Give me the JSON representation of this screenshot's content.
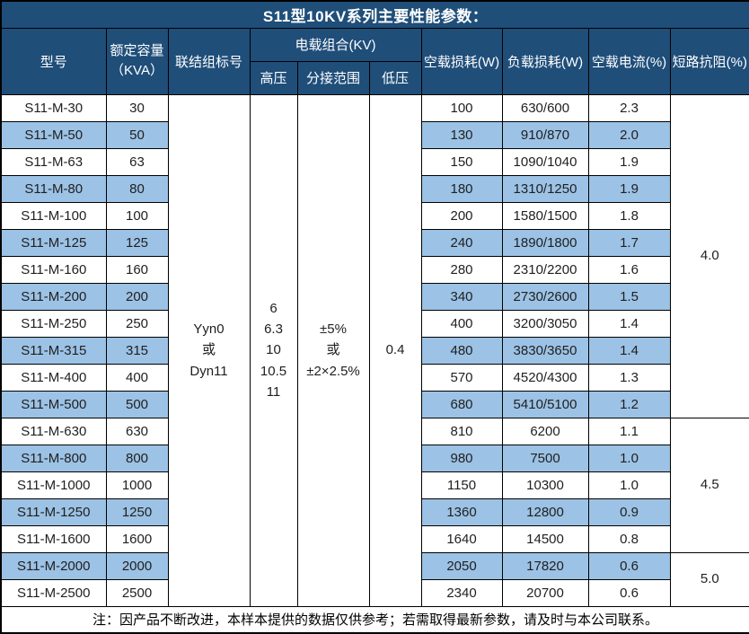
{
  "title": "S11型10KV系列主要性能参数：",
  "colors": {
    "header_bg": "#1F4E79",
    "stripe_bg": "#9CC2E5",
    "border": "#000000",
    "header_text": "#FFFFFF",
    "body_text": "#1F1F1F",
    "row_bg": "#FFFFFF"
  },
  "table": {
    "header": {
      "model": "型号",
      "capacity": "额定容量\n（KVA）",
      "connection": "联结组标号",
      "load_combo": "电载组合(KV)",
      "hv": "高压",
      "tap_range": "分接范围",
      "lv": "低压",
      "no_load_loss": "空载损耗(W)",
      "load_loss": "负载损耗(W)",
      "no_load_current": "空载电流(%)",
      "impedance": "短路抗阻(%)"
    },
    "merged": {
      "connection": "Yyn0\n或\nDyn11",
      "hv": "6\n6.3\n10\n10.5\n11",
      "tap_range": "±5%\n或\n±2×2.5%",
      "lv": "0.4"
    },
    "impedance_groups": [
      {
        "value": "4.0",
        "start": 0,
        "span": 12
      },
      {
        "value": "4.5",
        "start": 12,
        "span": 5
      },
      {
        "value": "5.0",
        "start": 17,
        "span": 2
      }
    ],
    "rows": [
      {
        "model": "S11-M-30",
        "capacity": "30",
        "no_load_loss": "100",
        "load_loss": "630/600",
        "no_load_current": "2.3"
      },
      {
        "model": "S11-M-50",
        "capacity": "50",
        "no_load_loss": "130",
        "load_loss": "910/870",
        "no_load_current": "2.0"
      },
      {
        "model": "S11-M-63",
        "capacity": "63",
        "no_load_loss": "150",
        "load_loss": "1090/1040",
        "no_load_current": "1.9"
      },
      {
        "model": "S11-M-80",
        "capacity": "80",
        "no_load_loss": "180",
        "load_loss": "1310/1250",
        "no_load_current": "1.9"
      },
      {
        "model": "S11-M-100",
        "capacity": "100",
        "no_load_loss": "200",
        "load_loss": "1580/1500",
        "no_load_current": "1.8"
      },
      {
        "model": "S11-M-125",
        "capacity": "125",
        "no_load_loss": "240",
        "load_loss": "1890/1800",
        "no_load_current": "1.7"
      },
      {
        "model": "S11-M-160",
        "capacity": "160",
        "no_load_loss": "280",
        "load_loss": "2310/2200",
        "no_load_current": "1.6"
      },
      {
        "model": "S11-M-200",
        "capacity": "200",
        "no_load_loss": "340",
        "load_loss": "2730/2600",
        "no_load_current": "1.5"
      },
      {
        "model": "S11-M-250",
        "capacity": "250",
        "no_load_loss": "400",
        "load_loss": "3200/3050",
        "no_load_current": "1.4"
      },
      {
        "model": "S11-M-315",
        "capacity": "315",
        "no_load_loss": "480",
        "load_loss": "3830/3650",
        "no_load_current": "1.4"
      },
      {
        "model": "S11-M-400",
        "capacity": "400",
        "no_load_loss": "570",
        "load_loss": "4520/4300",
        "no_load_current": "1.3"
      },
      {
        "model": "S11-M-500",
        "capacity": "500",
        "no_load_loss": "680",
        "load_loss": "5410/5100",
        "no_load_current": "1.2"
      },
      {
        "model": "S11-M-630",
        "capacity": "630",
        "no_load_loss": "810",
        "load_loss": "6200",
        "no_load_current": "1.1"
      },
      {
        "model": "S11-M-800",
        "capacity": "800",
        "no_load_loss": "980",
        "load_loss": "7500",
        "no_load_current": "1.0"
      },
      {
        "model": "S11-M-1000",
        "capacity": "1000",
        "no_load_loss": "1150",
        "load_loss": "10300",
        "no_load_current": "1.0"
      },
      {
        "model": "S11-M-1250",
        "capacity": "1250",
        "no_load_loss": "1360",
        "load_loss": "12800",
        "no_load_current": "0.9"
      },
      {
        "model": "S11-M-1600",
        "capacity": "1600",
        "no_load_loss": "1640",
        "load_loss": "14500",
        "no_load_current": "0.8"
      },
      {
        "model": "S11-M-2000",
        "capacity": "2000",
        "no_load_loss": "2050",
        "load_loss": "17820",
        "no_load_current": "0.6"
      },
      {
        "model": "S11-M-2500",
        "capacity": "2500",
        "no_load_loss": "2340",
        "load_loss": "20700",
        "no_load_current": "0.6"
      }
    ]
  },
  "note": "注：因产品不断改进，本样本提供的数据仅供参考；若需取得最新参数，请及时与本公司联系。"
}
